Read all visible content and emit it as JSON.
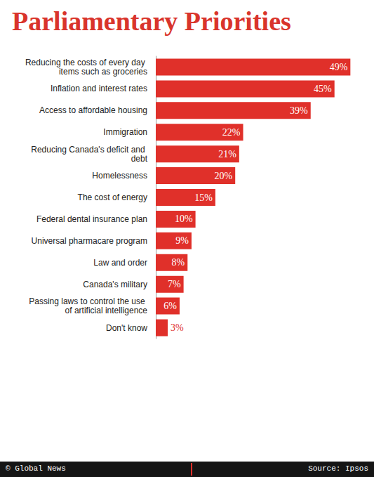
{
  "chart_data": {
    "type": "bar",
    "title": "Parliamentary Priorities",
    "categories": [
      "Reducing the costs of every day items such as groceries",
      "Inflation and interest rates",
      "Access to affordable housing",
      "Immigration",
      "Reducing Canada's deficit and debt",
      "Homelessness",
      "The cost of energy",
      "Federal dental insurance plan",
      "Universal pharmacare program",
      "Law and order",
      "Canada's military",
      "Passing laws to control the use of artificial intelligence",
      "Don't know"
    ],
    "values": [
      49,
      45,
      39,
      22,
      21,
      20,
      15,
      10,
      9,
      8,
      7,
      6,
      3
    ],
    "value_labels": [
      "49%",
      "45%",
      "39%",
      "22%",
      "21%",
      "20%",
      "15%",
      "10%",
      "9%",
      "8%",
      "7%",
      "6%",
      "3%"
    ],
    "color": "#e0302a",
    "orientation": "horizontal",
    "data_labels": true,
    "tick_labels": "y",
    "grid": false,
    "xlim": [
      0,
      50
    ],
    "credit": "© Global News",
    "source": "Source: Ipsos"
  }
}
